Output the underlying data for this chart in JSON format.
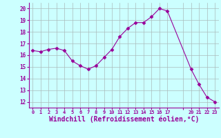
{
  "x": [
    0,
    1,
    2,
    3,
    4,
    5,
    6,
    7,
    8,
    9,
    10,
    11,
    12,
    13,
    14,
    15,
    16,
    17,
    20,
    21,
    22,
    23
  ],
  "y": [
    16.4,
    16.3,
    16.5,
    16.6,
    16.4,
    15.5,
    15.1,
    14.8,
    15.1,
    15.8,
    16.5,
    17.6,
    18.3,
    18.8,
    18.8,
    19.3,
    20.0,
    19.8,
    14.8,
    13.5,
    12.4,
    12.0
  ],
  "line_color": "#990099",
  "marker": "D",
  "marker_size": 2.5,
  "bg_color": "#ccffff",
  "grid_color": "#aabbbb",
  "xlabel": "Windchill (Refroidissement éolien,°C)",
  "xlabel_fontsize": 7,
  "xtick_labels": [
    "0",
    "1",
    "2",
    "3",
    "4",
    "5",
    "6",
    "7",
    "8",
    "9",
    "10",
    "11",
    "12",
    "13",
    "14",
    "15",
    "16",
    "17",
    "",
    "20",
    "21",
    "22",
    "23"
  ],
  "xticks": [
    0,
    1,
    2,
    3,
    4,
    5,
    6,
    7,
    8,
    9,
    10,
    11,
    12,
    13,
    14,
    15,
    16,
    17,
    19,
    20,
    21,
    22,
    23
  ],
  "yticks": [
    12,
    13,
    14,
    15,
    16,
    17,
    18,
    19,
    20
  ],
  "ylim": [
    11.5,
    20.5
  ],
  "xlim": [
    -0.5,
    23.5
  ]
}
